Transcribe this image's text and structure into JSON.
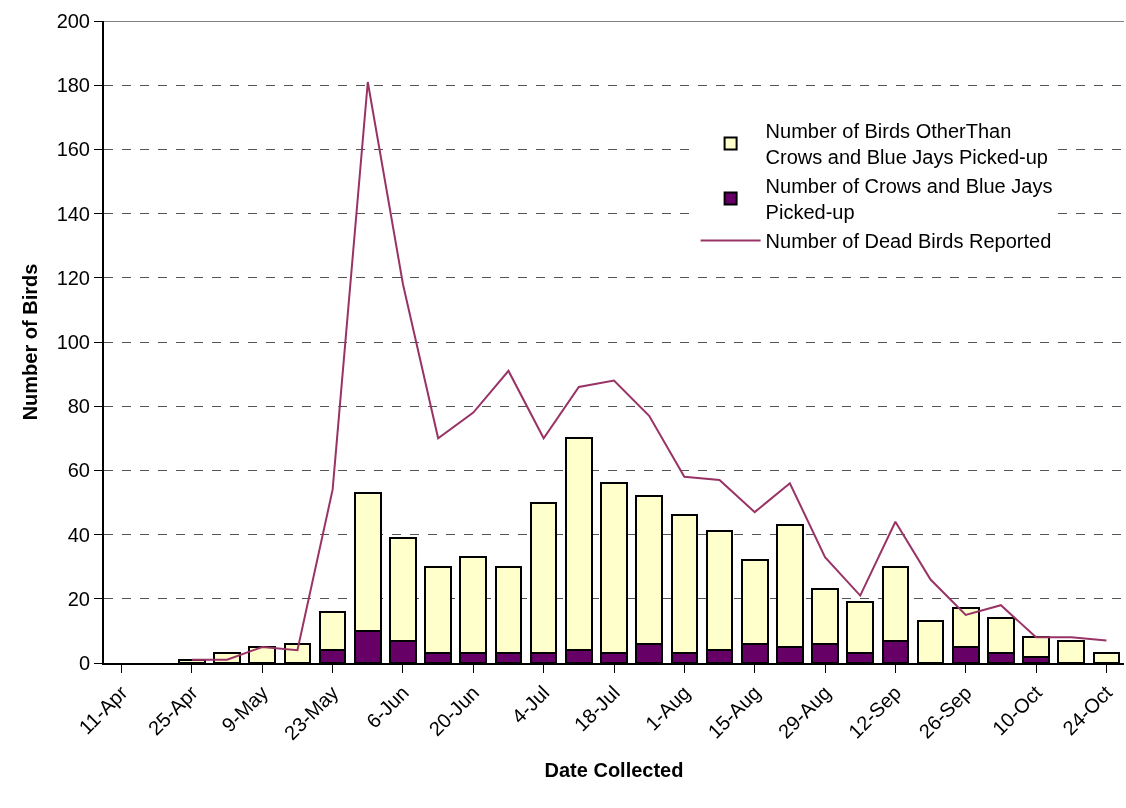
{
  "chart_data": {
    "type": "bar",
    "stacked": true,
    "xlabel": "Date Collected",
    "ylabel": "Number of Birds",
    "categories": [
      "11-Apr",
      null,
      "25-Apr",
      null,
      "9-May",
      null,
      "23-May",
      null,
      "6-Jun",
      null,
      "20-Jun",
      null,
      "4-Jul",
      null,
      "18-Jul",
      null,
      "1-Aug",
      null,
      "15-Aug",
      null,
      "29-Aug",
      null,
      "12-Sep",
      null,
      "26-Sep",
      null,
      "10-Oct",
      null,
      "24-Oct"
    ],
    "series": [
      {
        "name": "Number of Crows and Blue Jays Picked-up",
        "color": "#660066",
        "values": [
          null,
          null,
          0,
          0,
          0,
          0,
          4,
          10,
          7,
          3,
          3,
          3,
          3,
          4,
          3,
          6,
          3,
          4,
          6,
          5,
          6,
          3,
          7,
          0,
          5,
          3,
          2,
          0,
          0
        ]
      },
      {
        "name": "Number of Birds OtherThan Crows and Blue Jays Picked-up",
        "color": "#ffffcc",
        "values": [
          null,
          null,
          1,
          3,
          5,
          6,
          12,
          43,
          32,
          27,
          30,
          27,
          47,
          66,
          53,
          46,
          43,
          37,
          26,
          38,
          17,
          16,
          23,
          13,
          12,
          11,
          6,
          7,
          3
        ]
      },
      {
        "name": "Number of Dead Birds Reported",
        "type": "line",
        "color": "#993366",
        "values": [
          null,
          null,
          1,
          1,
          5,
          4,
          54,
          181,
          118,
          70,
          78,
          91,
          70,
          86,
          88,
          77,
          58,
          57,
          47,
          56,
          33,
          21,
          44,
          26,
          15,
          18,
          8,
          8,
          7
        ]
      }
    ],
    "ylim": [
      0,
      200
    ],
    "yticks": [
      0,
      20,
      40,
      60,
      80,
      100,
      120,
      140,
      160,
      180,
      200
    ],
    "grid": "y",
    "legend": "top right",
    "marker": "none",
    "line_style": "solid"
  }
}
